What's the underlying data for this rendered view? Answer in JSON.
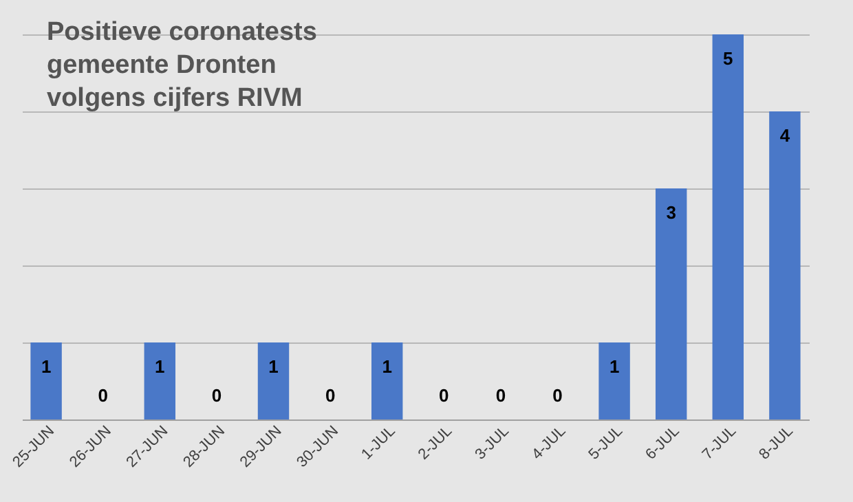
{
  "chart_data": {
    "type": "bar",
    "title": "Positieve coronatests\ngemeente Dronten\nvolgens cijfers RIVM",
    "categories": [
      "25-JUN",
      "26-JUN",
      "27-JUN",
      "28-JUN",
      "29-JUN",
      "30-JUN",
      "1-JUL",
      "2-JUL",
      "3-JUL",
      "4-JUL",
      "5-JUL",
      "6-JUL",
      "7-JUL",
      "8-JUL"
    ],
    "values": [
      1,
      0,
      1,
      0,
      1,
      0,
      1,
      0,
      0,
      0,
      1,
      3,
      5,
      4
    ],
    "color": "#4a78c8",
    "ylim": [
      0,
      5
    ],
    "yticks": [
      {
        "value": 0,
        "label": null
      },
      {
        "value": 1,
        "label": null
      },
      {
        "value": 2,
        "label": null
      },
      {
        "value": 3,
        "label": null
      },
      {
        "value": 4,
        "label": null
      },
      {
        "value": 5,
        "label": null
      }
    ],
    "grid": "y",
    "tick_labels": "x",
    "data_labels": true
  }
}
